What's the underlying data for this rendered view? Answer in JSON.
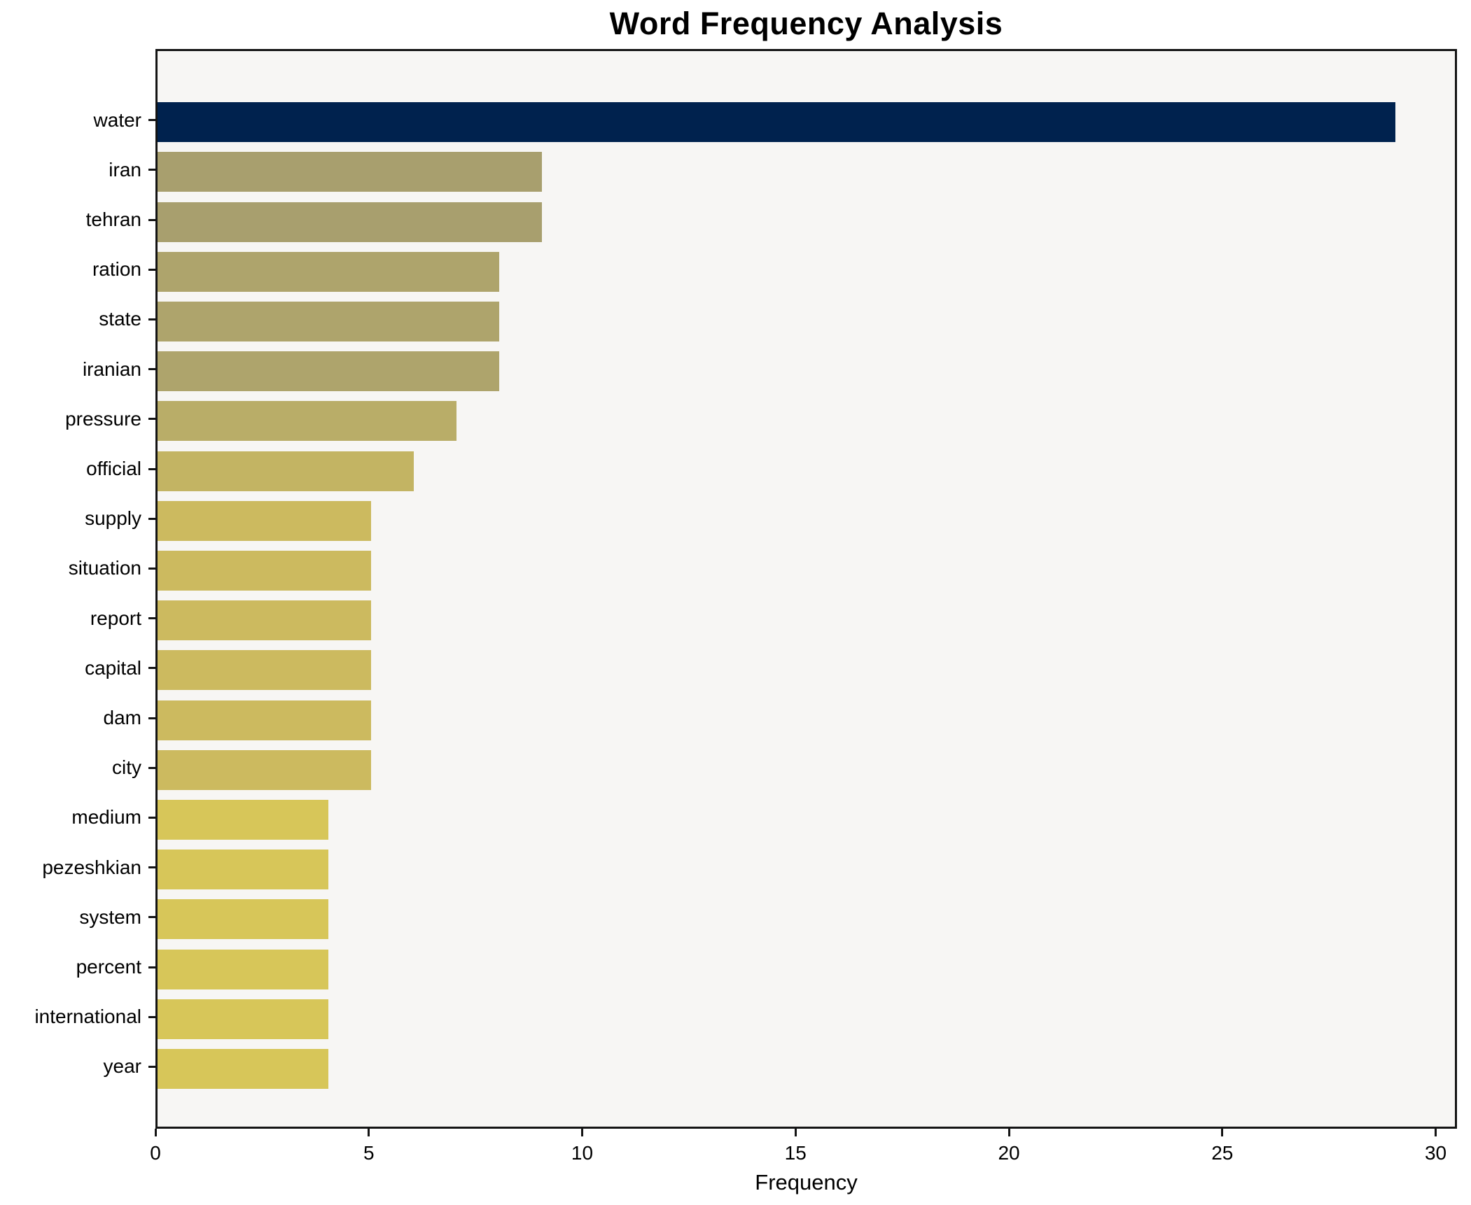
{
  "chart_data": {
    "type": "bar",
    "orientation": "horizontal",
    "title": "Word Frequency Analysis",
    "xlabel": "Frequency",
    "ylabel": "",
    "categories": [
      "water",
      "iran",
      "tehran",
      "ration",
      "state",
      "iranian",
      "pressure",
      "official",
      "supply",
      "situation",
      "report",
      "capital",
      "dam",
      "city",
      "medium",
      "pezeshkian",
      "system",
      "percent",
      "international",
      "year"
    ],
    "values": [
      29,
      9,
      9,
      8,
      8,
      8,
      7,
      6,
      5,
      5,
      5,
      5,
      5,
      5,
      4,
      4,
      4,
      4,
      4,
      4
    ],
    "bar_colors": [
      "#00224e",
      "#a89f6e",
      "#a89f6e",
      "#aea46c",
      "#aea46c",
      "#aea46c",
      "#b9ad68",
      "#c3b463",
      "#ccba5f",
      "#ccba5f",
      "#ccba5f",
      "#ccba5f",
      "#ccba5f",
      "#ccba5f",
      "#d7c659",
      "#d7c659",
      "#d7c659",
      "#d7c659",
      "#d7c659",
      "#d7c659"
    ],
    "x_ticks": [
      0,
      5,
      10,
      15,
      20,
      25,
      30
    ],
    "xlim": [
      0,
      30.5
    ],
    "grid": false,
    "legend": "none",
    "figure_bg": "#ffffff",
    "plot_bg": "#f7f6f4",
    "axis_color": "#141414"
  }
}
